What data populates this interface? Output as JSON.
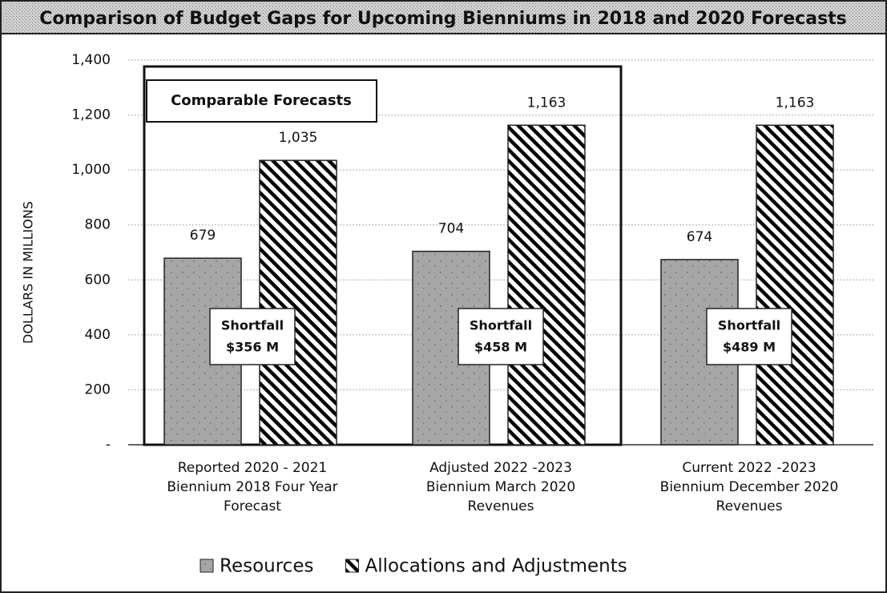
{
  "chart_data": {
    "type": "bar",
    "title": "Comparison of Budget Gaps for Upcoming Bienniums in 2018 and 2020 Forecasts",
    "ylabel": "DOLLARS IN MILLIONS",
    "categories": [
      "Reported 2020 - 2021 Biennium 2018 Four Year Forecast",
      "Adjusted 2022 -2023 Biennium March 2020 Revenues",
      "Current 2022 -2023 Biennium December 2020 Revenues"
    ],
    "series": [
      {
        "name": "Resources",
        "color": "#a6a6a6",
        "values": [
          679,
          704,
          674
        ]
      },
      {
        "name": "Allocations and Adjustments",
        "color": "#000000",
        "values": [
          1035,
          1163,
          1163
        ],
        "value_labels": [
          "1,035",
          "1,163",
          "1,163"
        ]
      }
    ],
    "ylim": [
      0,
      1400
    ],
    "yticks": [
      {
        "value": 0,
        "label": "-"
      },
      200,
      400,
      600,
      800,
      {
        "value": 1000,
        "label": "1,000"
      },
      {
        "value": 1200,
        "label": "1,200"
      },
      {
        "value": 1400,
        "label": "1,400"
      }
    ],
    "grid": true,
    "legend": "bottom",
    "highlight_label": "Comparable Forecasts",
    "shortfalls": [
      {
        "title": "Shortfall",
        "amount": "$356 M"
      },
      {
        "title": "Shortfall",
        "amount": "$458 M"
      },
      {
        "title": "Shortfall",
        "amount": "$489 M"
      }
    ]
  }
}
